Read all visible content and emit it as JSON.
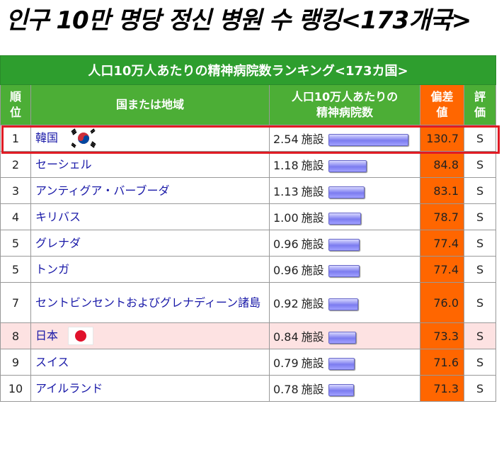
{
  "headline": "인구 10만 명당 정신 병원 수 랭킹<173개국>",
  "table": {
    "caption": "人口10万人あたりの精神病院数ランキング<173カ国>",
    "headers": {
      "rank_line1": "順",
      "rank_line2": "位",
      "country": "国または地域",
      "value_line1": "人口10万人あたりの",
      "value_line2": "精神病院数",
      "deviation_line1": "偏差",
      "deviation_line2": "値",
      "grade_line1": "評",
      "grade_line2": "価"
    },
    "unit": "施設",
    "rows": [
      {
        "rank": "1",
        "country": "韓国",
        "value": "2.54",
        "bar_value": 2.54,
        "deviation": "130.7",
        "grade": "S",
        "flag": "korea-flag"
      },
      {
        "rank": "2",
        "country": "セーシェル",
        "value": "1.18",
        "bar_value": 1.18,
        "deviation": "84.8",
        "grade": "S"
      },
      {
        "rank": "3",
        "country": "アンティグア・バーブーダ",
        "value": "1.13",
        "bar_value": 1.13,
        "deviation": "83.1",
        "grade": "S"
      },
      {
        "rank": "4",
        "country": "キリバス",
        "value": "1.00",
        "bar_value": 1.0,
        "deviation": "78.7",
        "grade": "S"
      },
      {
        "rank": "5",
        "country": "グレナダ",
        "value": "0.96",
        "bar_value": 0.96,
        "deviation": "77.4",
        "grade": "S"
      },
      {
        "rank": "5",
        "country": "トンガ",
        "value": "0.96",
        "bar_value": 0.96,
        "deviation": "77.4",
        "grade": "S"
      },
      {
        "rank": "7",
        "country": "セントビンセントおよびグレナディーン諸島",
        "value": "0.92",
        "bar_value": 0.92,
        "deviation": "76.0",
        "grade": "S"
      },
      {
        "rank": "8",
        "country": "日本",
        "value": "0.84",
        "bar_value": 0.84,
        "deviation": "73.3",
        "grade": "S",
        "flag": "japan-flag"
      },
      {
        "rank": "9",
        "country": "スイス",
        "value": "0.79",
        "bar_value": 0.79,
        "deviation": "71.6",
        "grade": "S"
      },
      {
        "rank": "10",
        "country": "アイルランド",
        "value": "0.78",
        "bar_value": 0.78,
        "deviation": "71.3",
        "grade": "S"
      }
    ]
  },
  "colors": {
    "caption_bg": "#2e9e2e",
    "header_bg": "#4cae36",
    "deviation_bg": "#ff6600",
    "japan_row_bg": "#fde2e2",
    "highlight_border": "#e01b24",
    "link_text": "#1a1aa8"
  }
}
